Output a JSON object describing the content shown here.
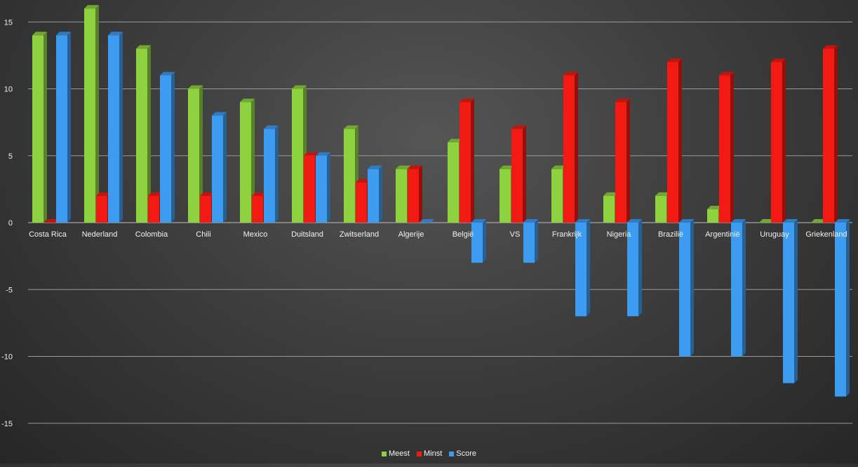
{
  "chart_data": {
    "type": "bar",
    "title": "",
    "xlabel": "",
    "ylabel": "",
    "ylim": [
      -15,
      15
    ],
    "yticks": [
      15,
      10,
      5,
      0,
      -5,
      -10,
      -15
    ],
    "grid": true,
    "legend_position": "bottom",
    "categories": [
      "Costa Rica",
      "Nederland",
      "Colombia",
      "Chili",
      "Mexico",
      "Duitsland",
      "Zwitserland",
      "Algerije",
      "België",
      "VS",
      "Frankrijk",
      "Nigeria",
      "Brazilië",
      "Argentinië",
      "Uruguay",
      "Griekenland"
    ],
    "series": [
      {
        "name": "Meest",
        "color": "#8ED23F",
        "values": [
          14,
          16,
          13,
          10,
          9,
          10,
          7,
          4,
          6,
          4,
          4,
          2,
          2,
          1,
          0,
          0
        ]
      },
      {
        "name": "Minst",
        "color": "#F21A12",
        "values": [
          0,
          2,
          2,
          2,
          2,
          5,
          3,
          4,
          9,
          7,
          11,
          9,
          12,
          11,
          12,
          13
        ]
      },
      {
        "name": "Score",
        "color": "#3D9BF0",
        "values": [
          14,
          14,
          11,
          8,
          7,
          5,
          4,
          0,
          -3,
          -3,
          -7,
          -7,
          -10,
          -10,
          -12,
          -13
        ]
      }
    ]
  }
}
